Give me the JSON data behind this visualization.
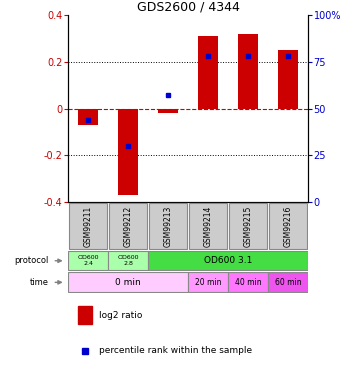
{
  "title": "GDS2600 / 4344",
  "samples": [
    "GSM99211",
    "GSM99212",
    "GSM99213",
    "GSM99214",
    "GSM99215",
    "GSM99216"
  ],
  "log2_ratio": [
    -0.07,
    -0.37,
    -0.02,
    0.31,
    0.32,
    0.25
  ],
  "percentile_rank": [
    44,
    30,
    57,
    78,
    78,
    78
  ],
  "ylim_left": [
    -0.4,
    0.4
  ],
  "ylim_right": [
    0,
    100
  ],
  "yticks_left": [
    -0.4,
    -0.2,
    0.0,
    0.2,
    0.4
  ],
  "yticks_right": [
    0,
    25,
    50,
    75,
    100
  ],
  "bar_color": "#cc0000",
  "dot_color": "#0000cc",
  "ylabel_left_color": "#cc0000",
  "ylabel_right_color": "#0000cc",
  "hline_color": "#cc0000",
  "grid_color": "#000000",
  "sample_bg_color": "#cccccc",
  "sample_border_color": "#888888",
  "protocol_color_light": "#aaffaa",
  "protocol_color_dark": "#44dd44",
  "time_color_light": "#ffccff",
  "time_color_mid1": "#ff99ff",
  "time_color_mid2": "#ff77ff",
  "time_color_dark": "#ee55ee"
}
